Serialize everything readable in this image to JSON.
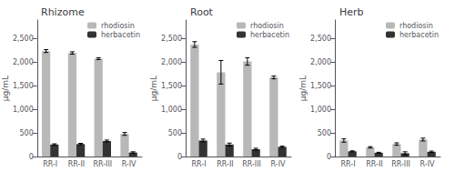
{
  "chart_data": [
    {
      "type": "bar",
      "title": "Rhizome",
      "categories": [
        "RR-I",
        "RR-II",
        "RR-III",
        "R-IV"
      ],
      "series": [
        {
          "name": "rhodiosin",
          "color": "#b8b8b8",
          "values": [
            2240,
            2200,
            2080,
            480
          ],
          "errors": [
            30,
            25,
            20,
            30
          ]
        },
        {
          "name": "herbacetin",
          "color": "#333333",
          "values": [
            255,
            265,
            330,
            85
          ],
          "errors": [
            15,
            15,
            20,
            15
          ]
        }
      ],
      "ylabel": "μg/mL",
      "ylim": [
        0,
        2900
      ],
      "yticks": [
        0,
        500,
        {
          "value": 1000,
          "label": "1,000"
        },
        {
          "value": 1500,
          "label": "1,500"
        },
        {
          "value": 2000,
          "label": "2,000"
        },
        {
          "value": 2500,
          "label": "2,500"
        }
      ],
      "grid": false,
      "legend": "upper right"
    },
    {
      "type": "bar",
      "title": "Root",
      "categories": [
        "RR-I",
        "RR-II",
        "RR-III",
        "R-IV"
      ],
      "series": [
        {
          "name": "rhodiosin",
          "color": "#b8b8b8",
          "values": [
            2380,
            1790,
            2020,
            1680
          ],
          "errors": [
            60,
            250,
            80,
            30
          ]
        },
        {
          "name": "herbacetin",
          "color": "#333333",
          "values": [
            340,
            255,
            155,
            205
          ],
          "errors": [
            30,
            30,
            20,
            15
          ]
        }
      ],
      "ylabel": "μg/mL",
      "ylim": [
        0,
        2900
      ],
      "yticks": [
        0,
        500,
        {
          "value": 1000,
          "label": "1,000"
        },
        {
          "value": 1500,
          "label": "1,500"
        },
        {
          "value": 2000,
          "label": "2,000"
        },
        {
          "value": 2500,
          "label": "2,500"
        }
      ],
      "grid": false,
      "legend": "upper right"
    },
    {
      "type": "bar",
      "title": "Herb",
      "categories": [
        "RR-I",
        "RR-II",
        "RR-III",
        "R-IV"
      ],
      "series": [
        {
          "name": "rhodiosin",
          "color": "#b8b8b8",
          "values": [
            340,
            195,
            265,
            360
          ],
          "errors": [
            35,
            15,
            25,
            30
          ]
        },
        {
          "name": "herbacetin",
          "color": "#333333",
          "values": [
            110,
            80,
            70,
            100
          ],
          "errors": [
            10,
            10,
            30,
            15
          ]
        }
      ],
      "ylabel": "μg/mL",
      "ylim": [
        0,
        2900
      ],
      "yticks": [
        0,
        500,
        {
          "value": 1000,
          "label": "1,000"
        },
        {
          "value": 1500,
          "label": "1,500"
        },
        {
          "value": 2000,
          "label": "2,000"
        },
        {
          "value": 2500,
          "label": "2,500"
        }
      ],
      "grid": false,
      "legend": "upper right"
    }
  ]
}
